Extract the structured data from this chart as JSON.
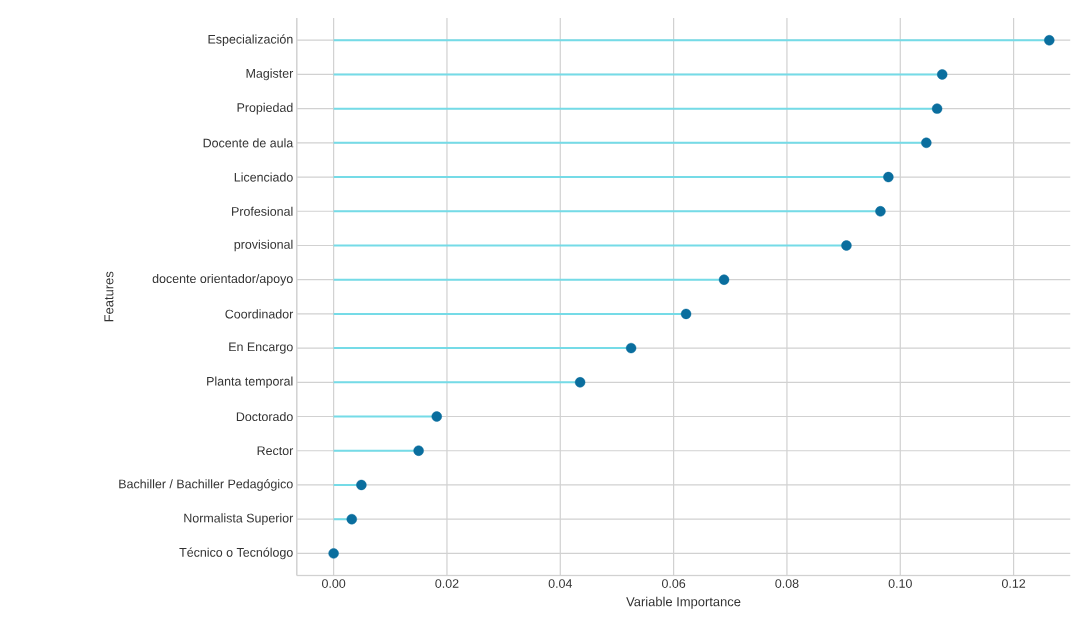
{
  "chart_data": {
    "type": "lollipop",
    "orientation": "horizontal",
    "xlabel": "Variable Importance",
    "ylabel": "Features",
    "categories": [
      "Especialización",
      "Magister",
      "Propiedad",
      "Docente de aula",
      "Licenciado",
      "Profesional",
      "provisional",
      "docente orientador/apoyo",
      "Coordinador",
      "En Encargo",
      "Planta temporal",
      "Doctorado",
      "Rector",
      "Bachiller / Bachiller Pedagógico",
      "Normalista Superior",
      "Técnico o Tecnólogo"
    ],
    "values": [
      0.1263,
      0.1074,
      0.1065,
      0.1046,
      0.0979,
      0.0965,
      0.0905,
      0.0689,
      0.0622,
      0.0525,
      0.0435,
      0.0182,
      0.015,
      0.0049,
      0.0032,
      0.0
    ],
    "color": "#0a6e9e",
    "marker": "circle",
    "grid": true,
    "xlim": [
      -0.0065,
      0.13
    ],
    "xticks": [
      {
        "value": 0,
        "label": "0.00"
      },
      {
        "value": 0.02,
        "label": "0.02"
      },
      {
        "value": 0.04,
        "label": "0.04"
      },
      {
        "value": 0.06,
        "label": "0.06"
      },
      {
        "value": 0.08,
        "label": "0.08"
      },
      {
        "value": 0.1,
        "label": "0.10"
      },
      {
        "value": 0.12,
        "label": "0.12"
      }
    ]
  }
}
